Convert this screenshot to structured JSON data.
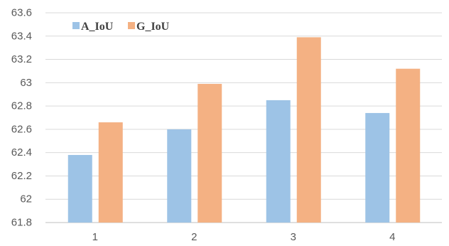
{
  "chart_data": {
    "type": "bar",
    "title": "",
    "xlabel": "",
    "ylabel": "",
    "categories": [
      "1",
      "2",
      "3",
      "4"
    ],
    "series": [
      {
        "name": "A_IoU",
        "values": [
          62.38,
          62.6,
          62.85,
          62.74
        ],
        "color": "#9DC3E6"
      },
      {
        "name": "G_IoU",
        "values": [
          62.66,
          62.99,
          63.39,
          63.12
        ],
        "color": "#F4B183"
      }
    ],
    "ylim": [
      61.8,
      63.6
    ],
    "yticks": [
      "61.8",
      "62",
      "62.2",
      "62.4",
      "62.6",
      "62.8",
      "63",
      "63.2",
      "63.4",
      "63.6"
    ],
    "grid": true,
    "legend": "top-left"
  }
}
